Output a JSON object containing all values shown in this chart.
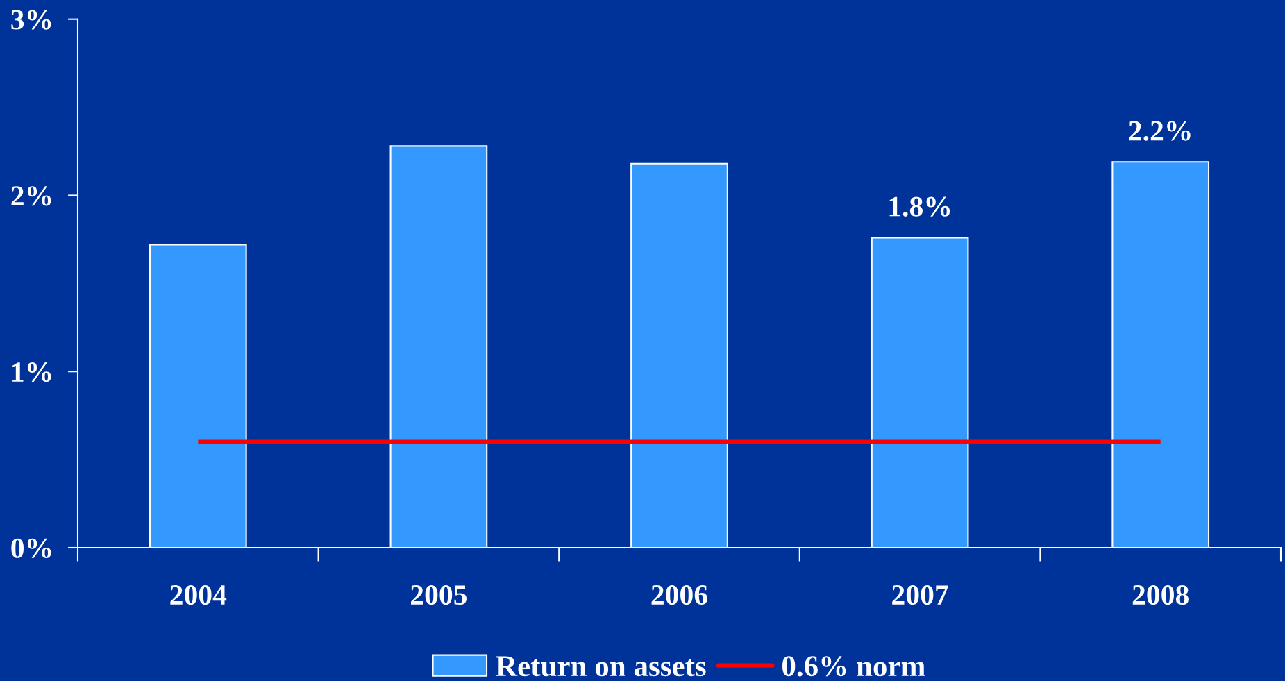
{
  "chart_data": {
    "type": "bar",
    "categories": [
      "2004",
      "2005",
      "2006",
      "2007",
      "2008"
    ],
    "series": [
      {
        "name": "Return on assets",
        "color": "#3399ff",
        "values": [
          1.72,
          2.28,
          2.18,
          1.76,
          2.19
        ],
        "value_labels": [
          null,
          null,
          null,
          "1.8%",
          "2.2%"
        ]
      },
      {
        "name": "0.6% norm",
        "type": "line",
        "color": "#ff0000",
        "values": [
          0.6,
          0.6,
          0.6,
          0.6,
          0.6
        ]
      }
    ],
    "ylim": [
      0,
      3
    ],
    "yticks": [
      {
        "value": 0,
        "label": "0%"
      },
      {
        "value": 1,
        "label": "1%"
      },
      {
        "value": 2,
        "label": "2%"
      },
      {
        "value": 3,
        "label": "3%"
      }
    ],
    "grid": false,
    "legend": "bottom"
  }
}
